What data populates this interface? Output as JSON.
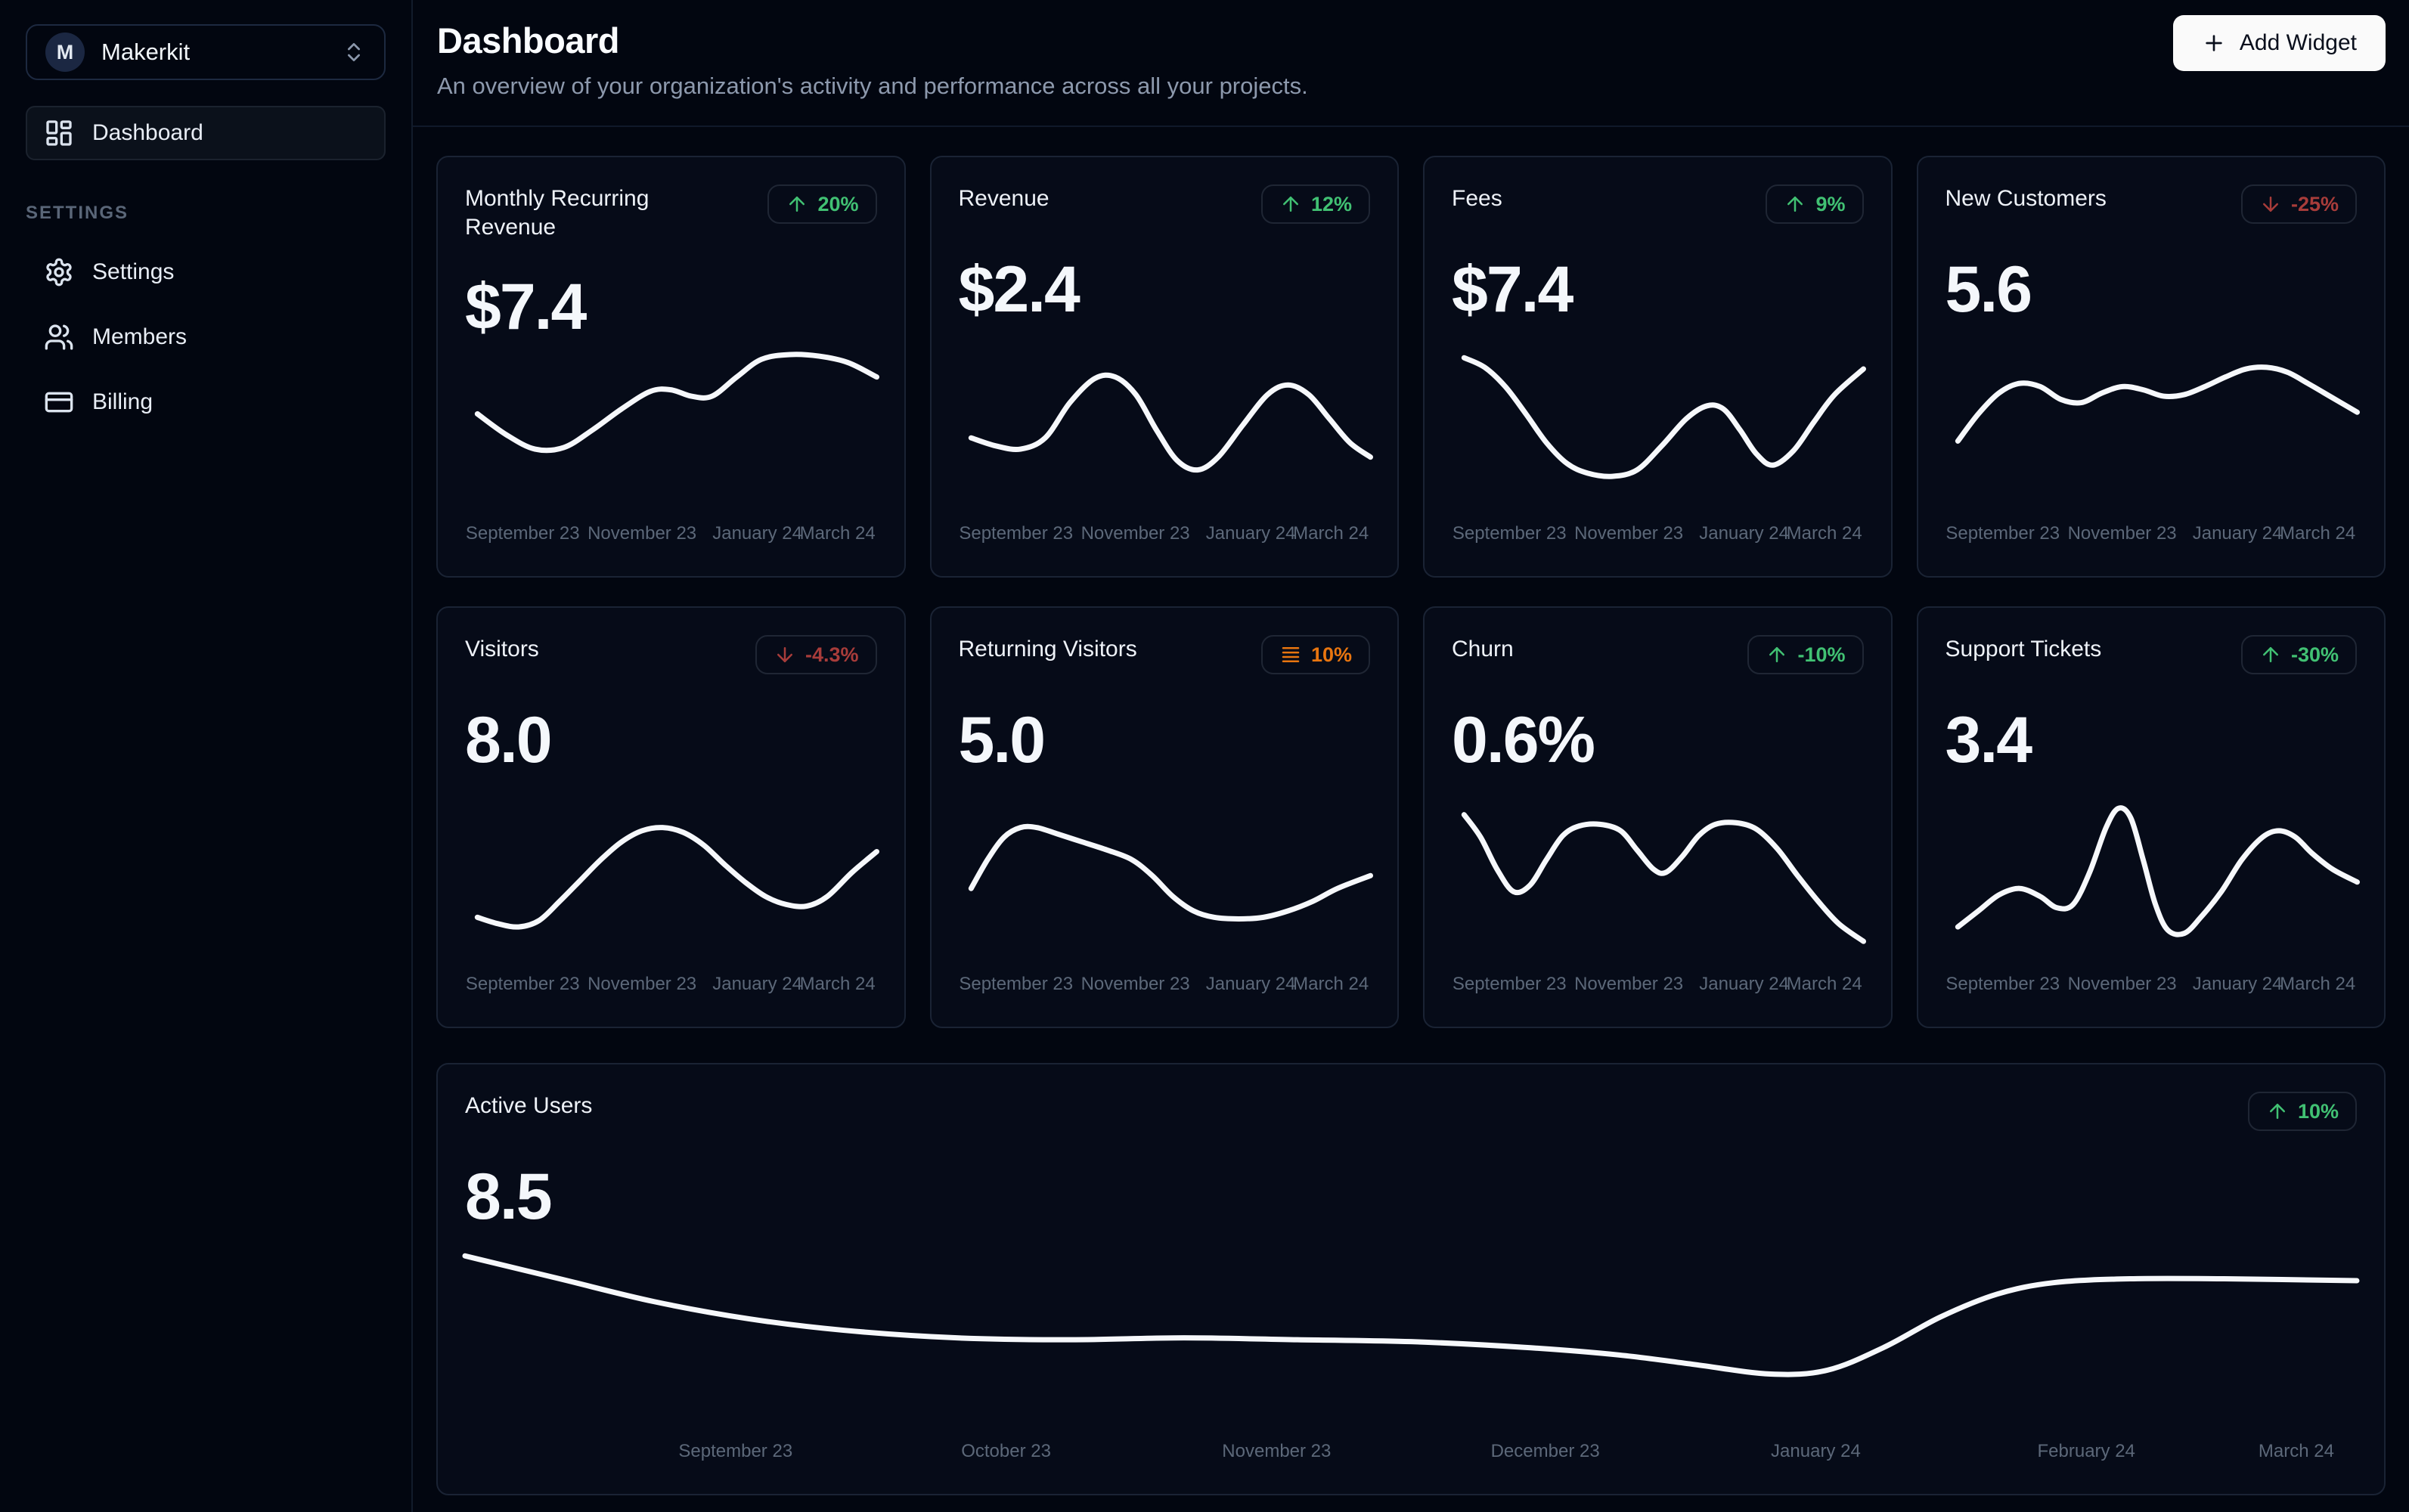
{
  "workspace": {
    "name": "Makerkit",
    "initial": "M"
  },
  "sidebar": {
    "nav": [
      {
        "label": "Dashboard",
        "icon": "layout-dashboard",
        "active": true
      }
    ],
    "section_label": "Settings",
    "settings_nav": [
      {
        "label": "Settings",
        "icon": "gear"
      },
      {
        "label": "Members",
        "icon": "users"
      },
      {
        "label": "Billing",
        "icon": "credit-card"
      }
    ]
  },
  "header": {
    "title": "Dashboard",
    "subtitle": "An overview of your organization's activity and performance across all your projects.",
    "add_widget_label": "Add Widget"
  },
  "colors": {
    "positive": "#41c173",
    "negative": "#a83c3a",
    "neutral": "#e8750f",
    "line": "#f6f8fb"
  },
  "chart_data": [
    {
      "type": "line",
      "layout": "small",
      "title": "Monthly Recurring Revenue",
      "value": "$7.4",
      "badge": {
        "icon": "arrow-up",
        "label": "20%",
        "sentiment": "positive"
      },
      "x_labels": [
        "September 23",
        "November 23",
        "January 24",
        "March 24"
      ],
      "note": "unlabeled sparkline; points normalized 0-100, y=0 is top",
      "series": [
        {
          "name": "value",
          "points": [
            [
              3,
              45
            ],
            [
              10,
              58
            ],
            [
              17,
              67
            ],
            [
              24,
              66
            ],
            [
              31,
              55
            ],
            [
              38,
              42
            ],
            [
              45,
              31
            ],
            [
              50,
              30
            ],
            [
              55,
              34
            ],
            [
              60,
              34
            ],
            [
              66,
              22
            ],
            [
              72,
              11
            ],
            [
              79,
              8
            ],
            [
              86,
              9
            ],
            [
              93,
              13
            ],
            [
              100,
              22
            ]
          ]
        }
      ]
    },
    {
      "type": "line",
      "layout": "small",
      "title": "Revenue",
      "value": "$2.4",
      "badge": {
        "icon": "arrow-up",
        "label": "12%",
        "sentiment": "positive"
      },
      "x_labels": [
        "September 23",
        "November 23",
        "January 24",
        "March 24"
      ],
      "series": [
        {
          "name": "value",
          "points": [
            [
              3,
              60
            ],
            [
              9,
              65
            ],
            [
              15,
              67
            ],
            [
              21,
              60
            ],
            [
              27,
              38
            ],
            [
              33,
              23
            ],
            [
              38,
              22
            ],
            [
              43,
              33
            ],
            [
              48,
              55
            ],
            [
              53,
              74
            ],
            [
              58,
              80
            ],
            [
              63,
              72
            ],
            [
              69,
              52
            ],
            [
              75,
              33
            ],
            [
              80,
              27
            ],
            [
              85,
              33
            ],
            [
              90,
              48
            ],
            [
              95,
              63
            ],
            [
              100,
              72
            ]
          ]
        }
      ]
    },
    {
      "type": "line",
      "layout": "small",
      "title": "Fees",
      "value": "$7.4",
      "badge": {
        "icon": "arrow-up",
        "label": "9%",
        "sentiment": "positive"
      },
      "x_labels": [
        "September 23",
        "November 23",
        "January 24",
        "March 24"
      ],
      "series": [
        {
          "name": "value",
          "points": [
            [
              3,
              10
            ],
            [
              8,
              16
            ],
            [
              13,
              28
            ],
            [
              18,
              45
            ],
            [
              23,
              63
            ],
            [
              28,
              76
            ],
            [
              33,
              82
            ],
            [
              39,
              84
            ],
            [
              45,
              80
            ],
            [
              51,
              65
            ],
            [
              57,
              48
            ],
            [
              62,
              40
            ],
            [
              66,
              42
            ],
            [
              70,
              55
            ],
            [
              74,
              70
            ],
            [
              78,
              77
            ],
            [
              83,
              68
            ],
            [
              88,
              50
            ],
            [
              93,
              33
            ],
            [
              100,
              17
            ]
          ]
        }
      ]
    },
    {
      "type": "line",
      "layout": "small",
      "title": "New Customers",
      "value": "5.6",
      "badge": {
        "icon": "arrow-down",
        "label": "-25%",
        "sentiment": "negative"
      },
      "x_labels": [
        "September 23",
        "November 23",
        "January 24",
        "March 24"
      ],
      "series": [
        {
          "name": "value",
          "points": [
            [
              3,
              62
            ],
            [
              8,
              45
            ],
            [
              13,
              32
            ],
            [
              18,
              26
            ],
            [
              23,
              28
            ],
            [
              28,
              36
            ],
            [
              33,
              38
            ],
            [
              38,
              32
            ],
            [
              43,
              28
            ],
            [
              48,
              30
            ],
            [
              53,
              34
            ],
            [
              58,
              33
            ],
            [
              63,
              28
            ],
            [
              68,
              22
            ],
            [
              73,
              17
            ],
            [
              78,
              16
            ],
            [
              83,
              19
            ],
            [
              88,
              26
            ],
            [
              94,
              35
            ],
            [
              100,
              44
            ]
          ]
        }
      ]
    },
    {
      "type": "line",
      "layout": "small",
      "title": "Visitors",
      "value": "8.0",
      "badge": {
        "icon": "arrow-down",
        "label": "-4.3%",
        "sentiment": "negative"
      },
      "x_labels": [
        "September 23",
        "November 23",
        "January 24",
        "March 24"
      ],
      "series": [
        {
          "name": "value",
          "points": [
            [
              3,
              78
            ],
            [
              8,
              82
            ],
            [
              13,
              84
            ],
            [
              18,
              80
            ],
            [
              23,
              68
            ],
            [
              28,
              55
            ],
            [
              33,
              42
            ],
            [
              38,
              31
            ],
            [
              43,
              24
            ],
            [
              48,
              22
            ],
            [
              53,
              25
            ],
            [
              58,
              33
            ],
            [
              63,
              45
            ],
            [
              68,
              56
            ],
            [
              73,
              65
            ],
            [
              78,
              70
            ],
            [
              83,
              71
            ],
            [
              88,
              65
            ],
            [
              94,
              50
            ],
            [
              100,
              37
            ]
          ]
        }
      ]
    },
    {
      "type": "line",
      "layout": "small",
      "title": "Returning Visitors",
      "value": "5.0",
      "badge": {
        "icon": "steady",
        "label": "10%",
        "sentiment": "neutral"
      },
      "x_labels": [
        "September 23",
        "November 23",
        "January 24",
        "March 24"
      ],
      "series": [
        {
          "name": "value",
          "points": [
            [
              3,
              60
            ],
            [
              7,
              42
            ],
            [
              11,
              28
            ],
            [
              15,
              22
            ],
            [
              19,
              22
            ],
            [
              24,
              26
            ],
            [
              30,
              31
            ],
            [
              36,
              36
            ],
            [
              42,
              42
            ],
            [
              47,
              52
            ],
            [
              52,
              65
            ],
            [
              57,
              74
            ],
            [
              62,
              78
            ],
            [
              68,
              79
            ],
            [
              74,
              78
            ],
            [
              80,
              74
            ],
            [
              86,
              68
            ],
            [
              92,
              60
            ],
            [
              100,
              52
            ]
          ]
        }
      ]
    },
    {
      "type": "line",
      "layout": "small",
      "title": "Churn",
      "value": "0.6%",
      "badge": {
        "icon": "arrow-up",
        "label": "-10%",
        "sentiment": "positive"
      },
      "x_labels": [
        "September 23",
        "November 23",
        "January 24",
        "March 24"
      ],
      "series": [
        {
          "name": "value",
          "points": [
            [
              3,
              14
            ],
            [
              7,
              28
            ],
            [
              11,
              48
            ],
            [
              15,
              62
            ],
            [
              19,
              58
            ],
            [
              23,
              42
            ],
            [
              27,
              27
            ],
            [
              31,
              21
            ],
            [
              36,
              20
            ],
            [
              41,
              24
            ],
            [
              45,
              36
            ],
            [
              49,
              48
            ],
            [
              52,
              50
            ],
            [
              56,
              40
            ],
            [
              60,
              27
            ],
            [
              64,
              20
            ],
            [
              69,
              19
            ],
            [
              74,
              23
            ],
            [
              79,
              35
            ],
            [
              84,
              52
            ],
            [
              89,
              68
            ],
            [
              94,
              82
            ],
            [
              100,
              93
            ]
          ]
        }
      ]
    },
    {
      "type": "line",
      "layout": "small",
      "title": "Support Tickets",
      "value": "3.4",
      "badge": {
        "icon": "arrow-up",
        "label": "-30%",
        "sentiment": "positive"
      },
      "x_labels": [
        "September 23",
        "November 23",
        "January 24",
        "March 24"
      ],
      "series": [
        {
          "name": "value",
          "points": [
            [
              3,
              84
            ],
            [
              8,
              74
            ],
            [
              13,
              64
            ],
            [
              18,
              60
            ],
            [
              23,
              65
            ],
            [
              27,
              72
            ],
            [
              31,
              70
            ],
            [
              35,
              50
            ],
            [
              39,
              22
            ],
            [
              42,
              10
            ],
            [
              45,
              16
            ],
            [
              48,
              42
            ],
            [
              51,
              70
            ],
            [
              54,
              86
            ],
            [
              58,
              88
            ],
            [
              62,
              78
            ],
            [
              67,
              62
            ],
            [
              72,
              42
            ],
            [
              77,
              28
            ],
            [
              81,
              24
            ],
            [
              85,
              28
            ],
            [
              89,
              38
            ],
            [
              94,
              48
            ],
            [
              100,
              56
            ]
          ]
        }
      ]
    },
    {
      "type": "line",
      "layout": "wide",
      "title": "Active Users",
      "value": "8.5",
      "badge": {
        "icon": "arrow-up",
        "label": "10%",
        "sentiment": "positive"
      },
      "x_labels": [
        "September 23",
        "October 23",
        "November 23",
        "December 23",
        "January 24",
        "February 24",
        "March 24"
      ],
      "series": [
        {
          "name": "value",
          "points": [
            [
              0,
              14
            ],
            [
              5,
              26
            ],
            [
              10,
              38
            ],
            [
              15,
              47
            ],
            [
              20,
              53
            ],
            [
              26,
              57
            ],
            [
              32,
              58
            ],
            [
              38,
              57
            ],
            [
              44,
              58
            ],
            [
              50,
              59
            ],
            [
              56,
              62
            ],
            [
              61,
              66
            ],
            [
              65,
              71
            ],
            [
              69,
              76
            ],
            [
              72,
              74
            ],
            [
              75,
              62
            ],
            [
              78,
              46
            ],
            [
              81,
              34
            ],
            [
              84,
              28
            ],
            [
              88,
              26
            ],
            [
              93,
              26
            ],
            [
              100,
              27
            ]
          ]
        }
      ]
    }
  ]
}
